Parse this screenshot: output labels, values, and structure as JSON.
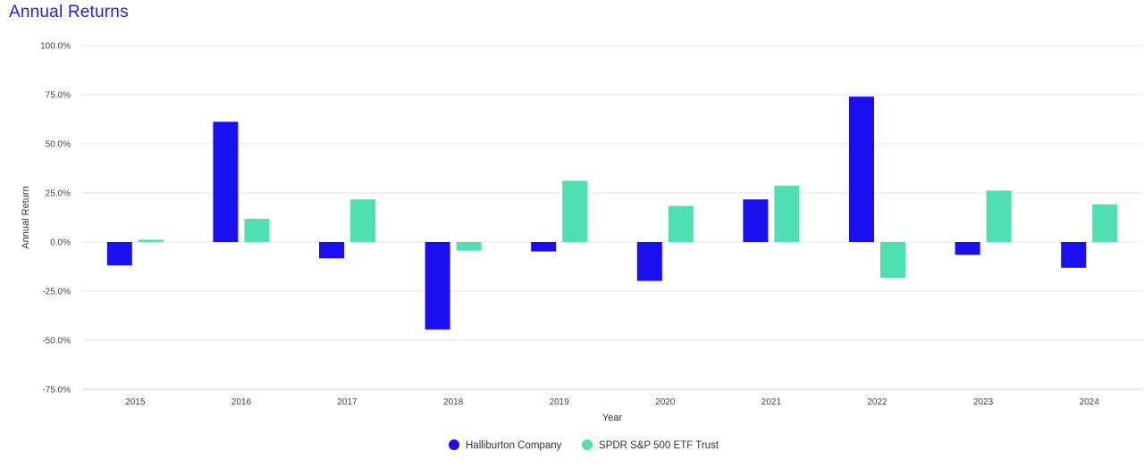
{
  "page_title": "Annual Returns",
  "colors": {
    "series_0": "#1a0fef",
    "series_1": "#4ee0b0",
    "grid": "#e6e6e6",
    "axis": "#cccccc"
  },
  "chart_data": {
    "type": "bar",
    "title": "Annual Returns",
    "xlabel": "Year",
    "ylabel": "Annual Return",
    "ylim": [
      -75,
      100
    ],
    "y_ticks": [
      "100.0%",
      "75.0%",
      "50.0%",
      "25.0%",
      "0.0%",
      "-25.0%",
      "-50.0%",
      "-75.0%"
    ],
    "y_tick_values": [
      100,
      75,
      50,
      25,
      0,
      -25,
      -50,
      -75
    ],
    "categories": [
      "2015",
      "2016",
      "2017",
      "2018",
      "2019",
      "2020",
      "2021",
      "2022",
      "2023",
      "2024"
    ],
    "series": [
      {
        "name": "Halliburton Company",
        "values": [
          -11.9,
          61.2,
          -8.3,
          -44.5,
          -4.8,
          -19.8,
          21.7,
          74.0,
          -6.5,
          -13.1
        ]
      },
      {
        "name": "SPDR S&P 500 ETF Trust",
        "values": [
          1.2,
          11.8,
          21.7,
          -4.4,
          31.2,
          18.4,
          28.7,
          -18.2,
          26.2,
          19.2
        ]
      }
    ],
    "grid": true,
    "legend_position": "bottom-center"
  }
}
